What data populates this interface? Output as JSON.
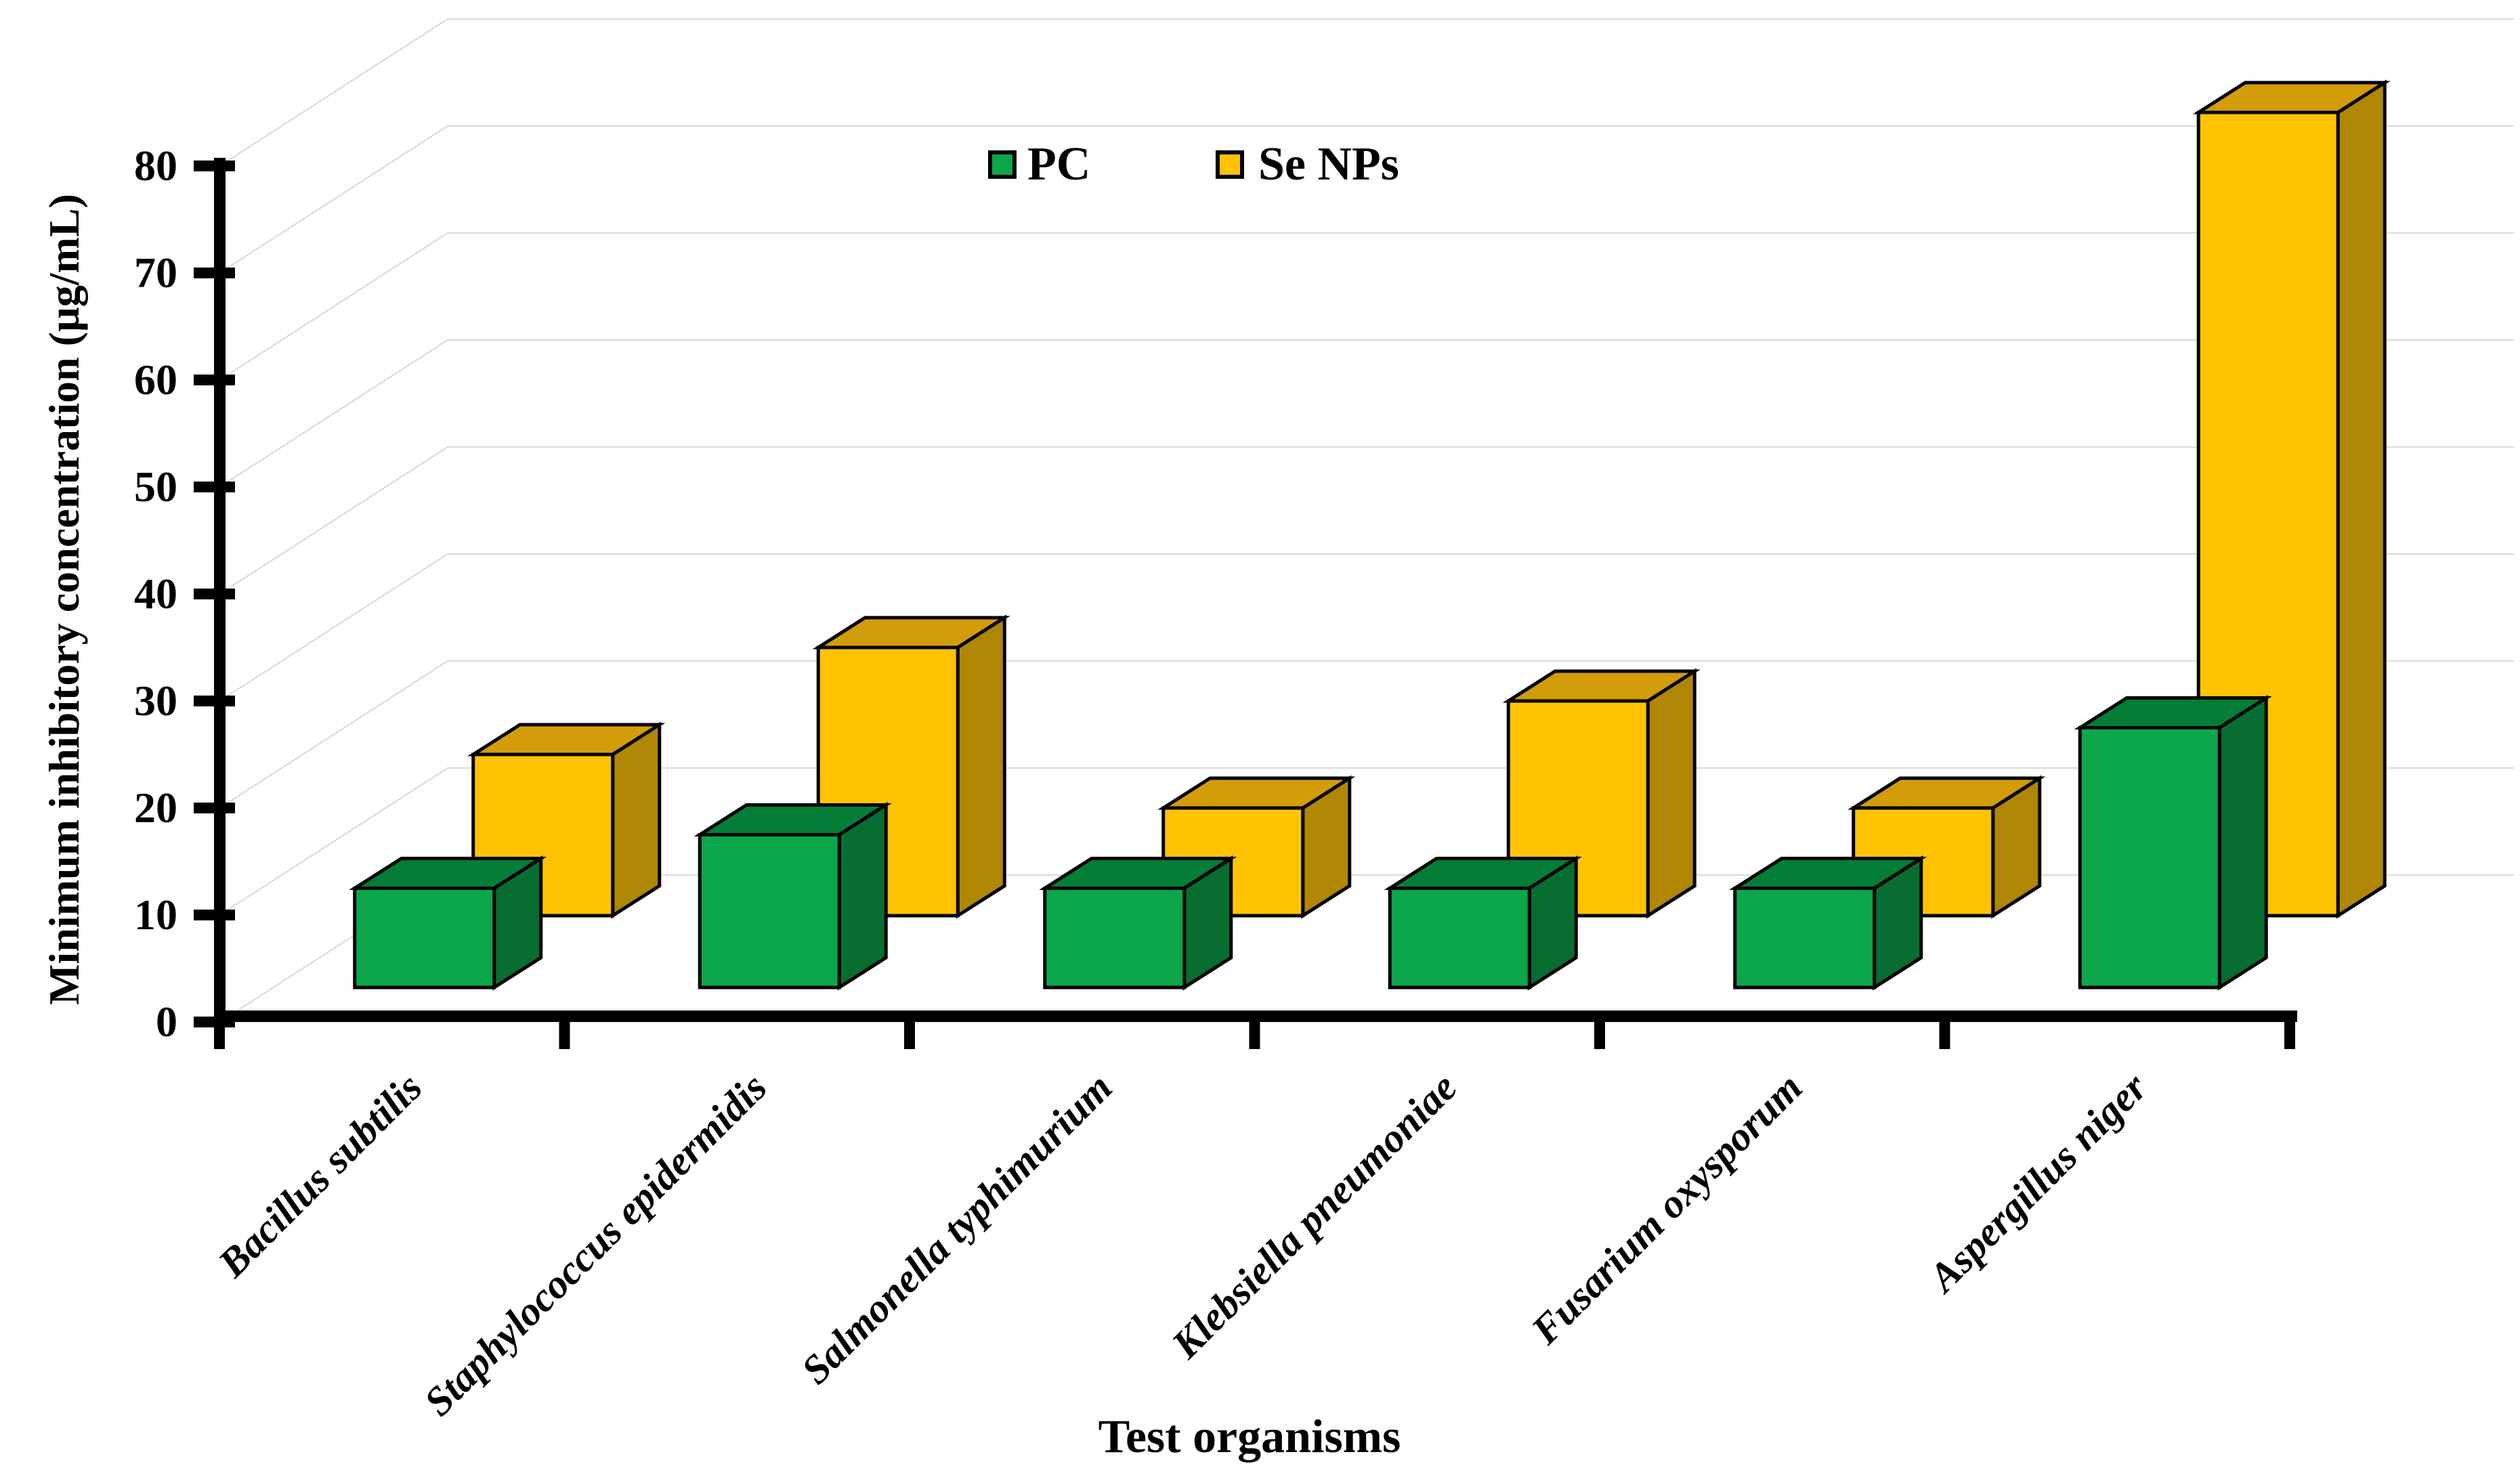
{
  "figure": {
    "kind": "3d-clustered-column-chart",
    "background_color": "#ffffff",
    "gridline_color": "#dedede",
    "axis_color": "#000000",
    "outline_color": "#000000"
  },
  "legend": {
    "items": [
      {
        "label": "PC",
        "color": "#0ca64b"
      },
      {
        "label": "Se NPs",
        "color": "#ffc303"
      }
    ]
  },
  "y_axis": {
    "title": "Minimum inhibitory concentration (µg/mL)",
    "min": 0,
    "max": 80,
    "step": 10,
    "tick_labels": [
      "0",
      "10",
      "20",
      "30",
      "40",
      "50",
      "60",
      "70",
      "80"
    ]
  },
  "x_axis": {
    "title": "Test organisms",
    "categories": [
      "Bacillus subtilis",
      "Staphylococcus epidermidis",
      "Salmonella typhimurium",
      "Klebsiella pneumoniae",
      "Fusarium oxysporum",
      "Aspergillus niger"
    ]
  },
  "chart_data": {
    "type": "bar",
    "style": "3d",
    "title": "",
    "xlabel": "Test organisms",
    "ylabel": "Minimum inhibitory concentration (µg/mL)",
    "ylim": [
      0,
      80
    ],
    "ytick_step": 10,
    "grid": true,
    "legend_position": "top-center",
    "categories": [
      "Bacillus subtilis",
      "Staphylococcus epidermidis",
      "Salmonella typhimurium",
      "Klebsiella pneumoniae",
      "Fusarium oxysporum",
      "Aspergillus niger"
    ],
    "series": [
      {
        "name": "PC",
        "values": [
          12.5,
          17.5,
          12.5,
          12.5,
          12.5,
          27.5
        ],
        "face_color": "#0ca64b",
        "top_color": "#047d36",
        "side_color": "#076d31"
      },
      {
        "name": "Se NPs",
        "values": [
          25,
          35,
          20,
          30,
          20,
          85
        ],
        "face_color": "#ffc303",
        "top_color": "#d39d0a",
        "side_color": "#b08704"
      }
    ]
  }
}
